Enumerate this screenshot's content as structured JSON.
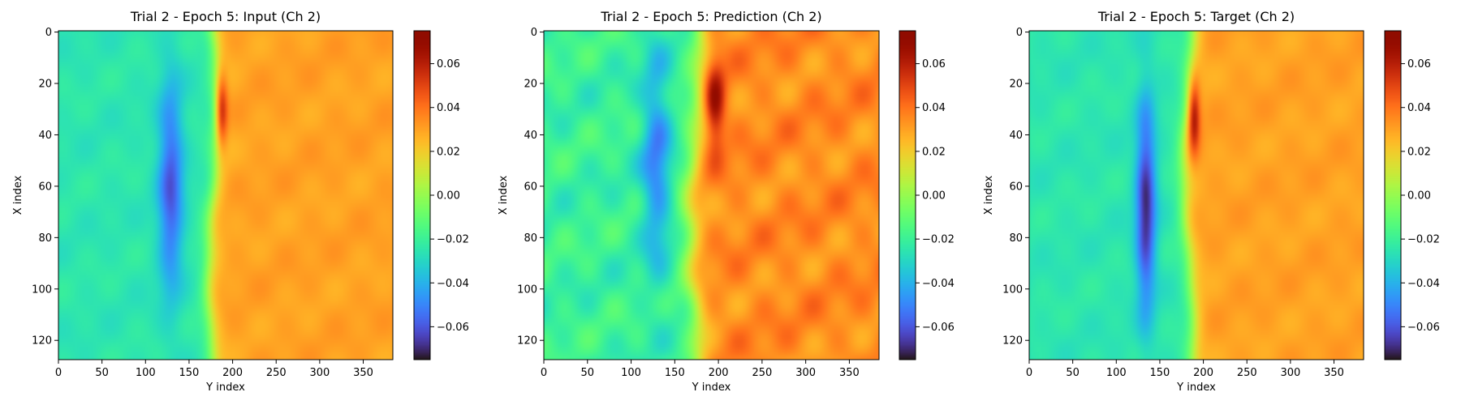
{
  "chart_data": [
    {
      "type": "heatmap",
      "title": "Trial 2 - Epoch 5: Input (Ch 2)",
      "xlabel": "Y index",
      "ylabel": "X index",
      "xlim": [
        0,
        383
      ],
      "ylim": [
        127,
        0
      ],
      "xticks": [
        "0",
        "50",
        "100",
        "150",
        "200",
        "250",
        "300",
        "350"
      ],
      "yticks": [
        "0",
        "20",
        "40",
        "60",
        "80",
        "100",
        "120"
      ],
      "colorbar": {
        "min": -0.075,
        "max": 0.075,
        "ticks": [
          "0.06",
          "0.04",
          "0.02",
          "0.00",
          "−0.02",
          "−0.04",
          "−0.06"
        ]
      },
      "colormap": "turbo",
      "field": {
        "front_y": 177,
        "front_sharpness": 5,
        "left_value": -0.025,
        "right_value": 0.03,
        "blue_blob": {
          "y": 128,
          "x": 60,
          "sy": 10,
          "sx": 28,
          "amp": -0.035
        },
        "red_blob": {
          "y": 186,
          "x": 30,
          "sy": 5,
          "sx": 10,
          "amp": 0.04
        },
        "noise": 0.004
      }
    },
    {
      "type": "heatmap",
      "title": "Trial 2 - Epoch 5: Prediction (Ch 2)",
      "xlabel": "Y index",
      "ylabel": "X index",
      "xlim": [
        0,
        383
      ],
      "ylim": [
        127,
        0
      ],
      "xticks": [
        "0",
        "50",
        "100",
        "150",
        "200",
        "250",
        "300",
        "350"
      ],
      "yticks": [
        "0",
        "20",
        "40",
        "60",
        "80",
        "100",
        "120"
      ],
      "colorbar": {
        "min": -0.075,
        "max": 0.075,
        "ticks": [
          "0.06",
          "0.04",
          "0.02",
          "0.00",
          "−0.02",
          "−0.04",
          "−0.06"
        ]
      },
      "colormap": "turbo",
      "field": {
        "front_y": 172,
        "front_sharpness": 7,
        "left_value": -0.02,
        "right_value": 0.035,
        "blue_blob": {
          "y": 128,
          "x": 50,
          "sy": 12,
          "sx": 30,
          "amp": -0.03
        },
        "red_blob": {
          "y": 195,
          "x": 28,
          "sy": 8,
          "sx": 12,
          "amp": 0.035
        },
        "noise": 0.01
      }
    },
    {
      "type": "heatmap",
      "title": "Trial 2 - Epoch 5: Target (Ch 2)",
      "xlabel": "Y index",
      "ylabel": "X index",
      "xlim": [
        0,
        383
      ],
      "ylim": [
        127,
        0
      ],
      "xticks": [
        "0",
        "50",
        "100",
        "150",
        "200",
        "250",
        "300",
        "350"
      ],
      "yticks": [
        "0",
        "20",
        "40",
        "60",
        "80",
        "100",
        "120"
      ],
      "colorbar": {
        "min": -0.075,
        "max": 0.075,
        "ticks": [
          "0.06",
          "0.04",
          "0.02",
          "0.00",
          "−0.02",
          "−0.04",
          "−0.06"
        ]
      },
      "colormap": "turbo",
      "field": {
        "front_y": 182,
        "front_sharpness": 5,
        "left_value": -0.025,
        "right_value": 0.03,
        "blue_blob": {
          "y": 133,
          "x": 68,
          "sy": 8,
          "sx": 28,
          "amp": -0.045
        },
        "red_blob": {
          "y": 188,
          "x": 32,
          "sy": 5,
          "sx": 10,
          "amp": 0.04
        },
        "noise": 0.004
      }
    }
  ]
}
